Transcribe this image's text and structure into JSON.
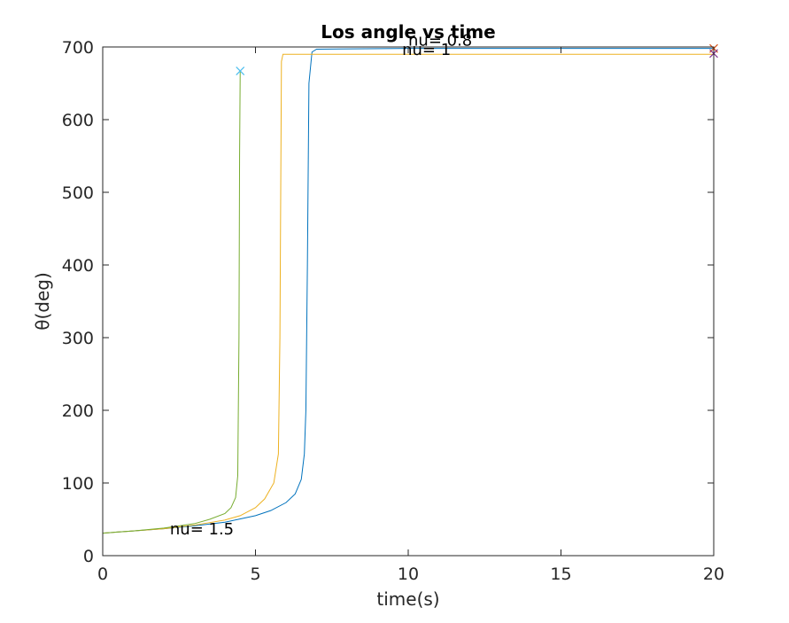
{
  "chart_data": {
    "type": "line",
    "title": "Los angle vs time",
    "xlabel": "time(s)",
    "ylabel": "θ(deg)",
    "xlim": [
      0,
      20
    ],
    "ylim": [
      0,
      700
    ],
    "xticks": [
      0,
      5,
      10,
      15,
      20
    ],
    "yticks": [
      0,
      100,
      200,
      300,
      400,
      500,
      600,
      700
    ],
    "grid": false,
    "series": [
      {
        "color": "#0072bd",
        "x": [
          0,
          1,
          2,
          3,
          4,
          5,
          5.5,
          6,
          6.3,
          6.5,
          6.6,
          6.65,
          6.7,
          6.75,
          6.85,
          7,
          10,
          15,
          20
        ],
        "y": [
          31,
          34,
          37,
          41,
          46,
          55,
          62,
          73,
          85,
          105,
          140,
          200,
          400,
          650,
          693,
          697,
          698,
          698,
          698
        ],
        "end_marker": {
          "x": 20,
          "y": 698,
          "color": "#d95319"
        }
      },
      {
        "color": "#edb120",
        "x": [
          0,
          1,
          2,
          3,
          4,
          4.5,
          5,
          5.3,
          5.6,
          5.75,
          5.8,
          5.85,
          5.9,
          6,
          10,
          15,
          20
        ],
        "y": [
          31,
          34,
          37,
          42,
          49,
          55,
          66,
          78,
          100,
          140,
          300,
          680,
          690,
          690,
          690,
          690,
          690
        ],
        "end_marker": {
          "x": 20,
          "y": 691,
          "color": "#7e2f8e"
        }
      },
      {
        "color": "#77ac30",
        "x": [
          0,
          1,
          2,
          3,
          3.5,
          4,
          4.2,
          4.35,
          4.42,
          4.46,
          4.48,
          4.5
        ],
        "y": [
          31,
          34,
          38,
          44,
          50,
          58,
          66,
          80,
          110,
          300,
          550,
          667
        ],
        "end_marker": {
          "x": 4.5,
          "y": 667,
          "color": "#4dbeee"
        }
      }
    ],
    "annotations": [
      {
        "text": "nu= 0.8",
        "x": 10,
        "y": 702
      },
      {
        "text": "nu= 1",
        "x": 9.8,
        "y": 689
      },
      {
        "text": "nu= 1.5",
        "x": 2.2,
        "y": 29
      }
    ]
  }
}
